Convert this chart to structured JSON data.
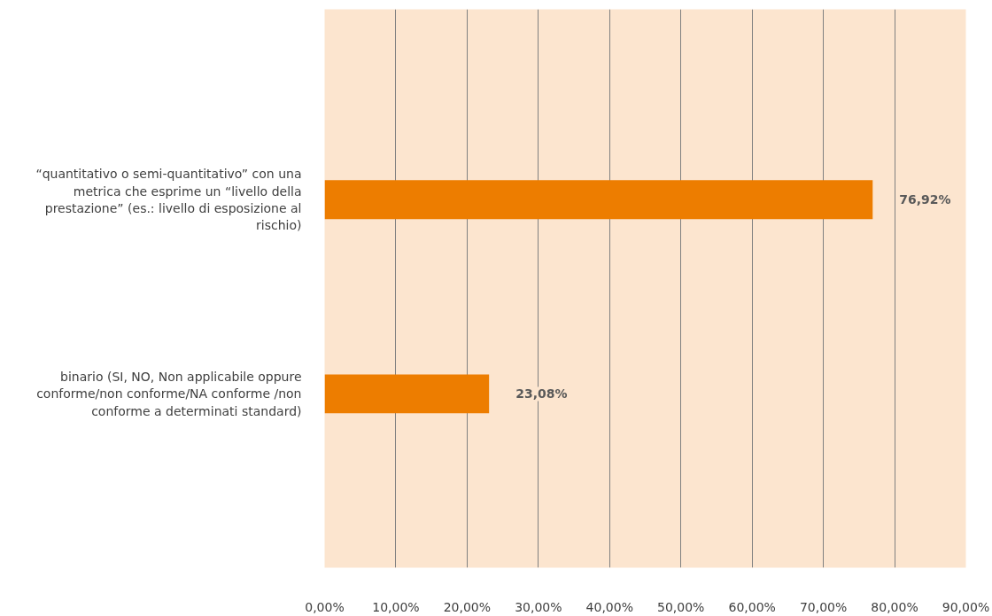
{
  "chart_data": {
    "type": "bar",
    "orientation": "horizontal",
    "categories": [
      "“quantitativo o semi-quantitativo” con una metrica che esprime un “livello della prestazione” (es.: livello di esposizione al rischio)",
      "binario (SI, NO, Non applicabile oppure conforme/non conforme/NA conforme /non conforme a determinati standard)"
    ],
    "values": [
      76.92,
      23.08
    ],
    "value_labels": [
      "76,92%",
      "23,08%"
    ],
    "color": "#ed7d00",
    "xlim": [
      0,
      90
    ],
    "xticks": [
      {
        "value": 0,
        "label": "0,00%"
      },
      {
        "value": 10,
        "label": "10,00%"
      },
      {
        "value": 20,
        "label": "20,00%"
      },
      {
        "value": 30,
        "label": "30,00%"
      },
      {
        "value": 40,
        "label": "40,00%"
      },
      {
        "value": 50,
        "label": "50,00%"
      },
      {
        "value": 60,
        "label": "60,00%"
      },
      {
        "value": 70,
        "label": "70,00%"
      },
      {
        "value": 80,
        "label": "80,00%"
      },
      {
        "value": 90,
        "label": "90,00%"
      }
    ],
    "grid": "x"
  }
}
